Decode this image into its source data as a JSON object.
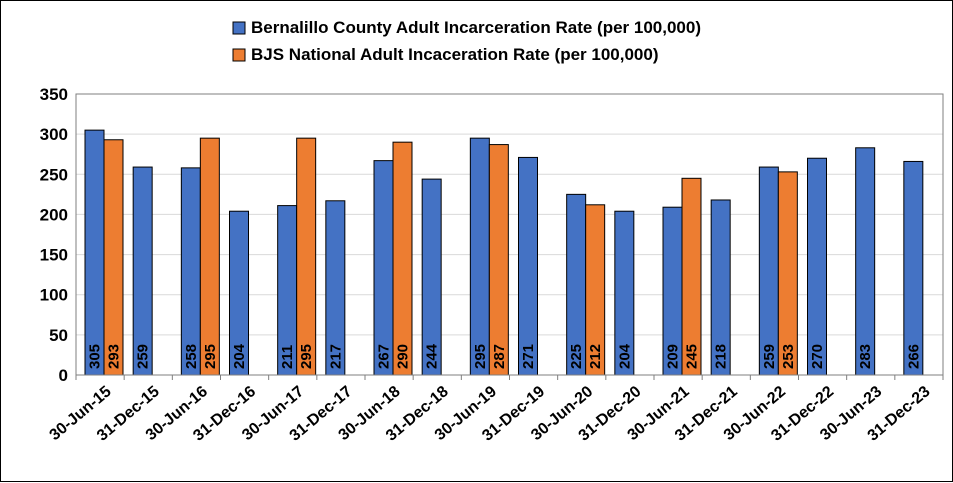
{
  "chart_data": {
    "type": "bar",
    "categories": [
      "30-Jun-15",
      "31-Dec-15",
      "30-Jun-16",
      "31-Dec-16",
      "30-Jun-17",
      "31-Dec-17",
      "30-Jun-18",
      "31-Dec-18",
      "30-Jun-19",
      "31-Dec-19",
      "30-Jun-20",
      "31-Dec-20",
      "30-Jun-21",
      "31-Dec-21",
      "30-Jun-22",
      "31-Dec-22",
      "30-Jun-23",
      "31-Dec-23"
    ],
    "series": [
      {
        "name": "Bernalillo County Adult Incarceration Rate (per 100,000)",
        "color": "#4472C4",
        "values": [
          305,
          259,
          258,
          204,
          211,
          217,
          267,
          244,
          295,
          271,
          225,
          204,
          209,
          218,
          259,
          270,
          283,
          266
        ]
      },
      {
        "name": "BJS National Adult Incaceration Rate (per 100,000)",
        "color": "#ED7D31",
        "values": [
          293,
          null,
          295,
          null,
          295,
          null,
          290,
          null,
          287,
          null,
          212,
          null,
          245,
          null,
          253,
          null,
          null,
          null
        ]
      }
    ],
    "yticks": [
      0,
      50,
      100,
      150,
      200,
      250,
      300,
      350
    ],
    "ylim": [
      0,
      350
    ],
    "grid": true,
    "legend": "top-center",
    "data_labels": "inside-base-rotated"
  }
}
